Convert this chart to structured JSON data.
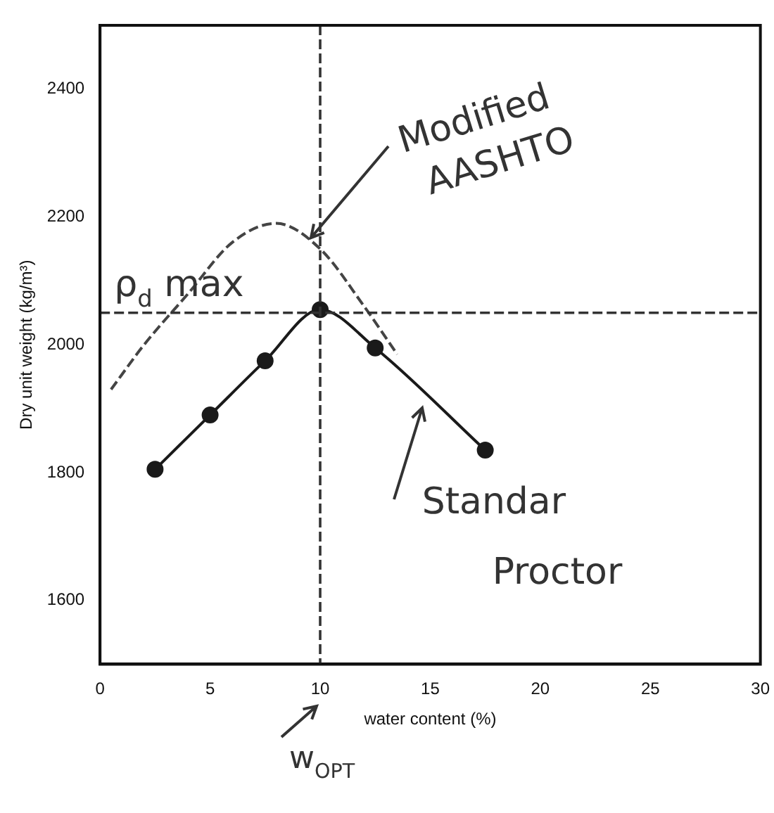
{
  "chart_data": {
    "type": "line",
    "xlabel": "water content (%)",
    "ylabel": "Dry unit weight (kg/m³)",
    "xlim": [
      0,
      30
    ],
    "xticks": [
      0,
      5,
      10,
      15,
      20,
      25,
      30
    ],
    "ylim": [
      1500,
      2500
    ],
    "yticks": [
      1600,
      1800,
      2000,
      2200,
      2400
    ],
    "grid": false,
    "legend": false,
    "series": [
      {
        "name": "Standar Proctor",
        "color": "#1a1a1a",
        "marker": "circle",
        "line_style": "solid",
        "x": [
          2.5,
          5,
          7.5,
          10,
          12.5,
          17.5
        ],
        "values": [
          1805,
          1890,
          1975,
          2055,
          1995,
          1835
        ]
      },
      {
        "name": "Modified AASHTO",
        "color": "#444444",
        "marker": "none",
        "line_style": "dashed",
        "x": [
          0.5,
          2,
          4,
          6,
          8,
          10,
          12,
          13.5
        ],
        "values": [
          1930,
          2000,
          2080,
          2160,
          2190,
          2150,
          2060,
          1985
        ]
      }
    ],
    "ref_lines": [
      {
        "axis": "y",
        "value": 2050,
        "label": "ρ$_{d}$ max",
        "line_style": "dashed"
      },
      {
        "axis": "x",
        "value": 10,
        "label": "w$_{OPT}$",
        "line_style": "dashed"
      }
    ]
  }
}
